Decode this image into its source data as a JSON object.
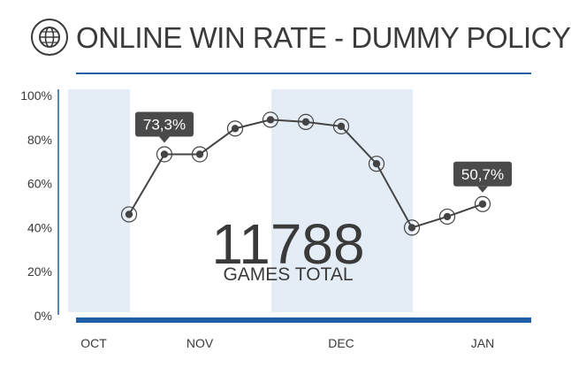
{
  "header": {
    "title": "ONLINE WIN RATE - DUMMY POLICY",
    "icon": "globe-icon"
  },
  "summary": {
    "total_value": "11788",
    "total_label": "GAMES TOTAL"
  },
  "colors": {
    "text": "#3a3a3a",
    "accent": "#1f5fa8",
    "band": "#e4ecf5",
    "line": "#444444",
    "callout_bg": "#4a4a4a"
  },
  "chart_data": {
    "type": "line",
    "title": "ONLINE WIN RATE - DUMMY POLICY",
    "xlabel": "",
    "ylabel": "",
    "ylim": [
      0,
      100
    ],
    "y_ticks": [
      "0%",
      "20%",
      "40%",
      "60%",
      "80%",
      "100%"
    ],
    "month_labels": [
      "OCT",
      "NOV",
      "DEC",
      "JAN"
    ],
    "month_bands": [
      "OCT",
      "DEC"
    ],
    "series": [
      {
        "values": [
          46,
          73.3,
          73.3,
          85,
          89,
          88,
          86,
          69,
          40,
          45,
          50.7
        ]
      }
    ],
    "callouts": [
      {
        "index": 1,
        "label": "73,3%"
      },
      {
        "index": 10,
        "label": "50,7%"
      }
    ],
    "grid": false,
    "legend": "none"
  }
}
